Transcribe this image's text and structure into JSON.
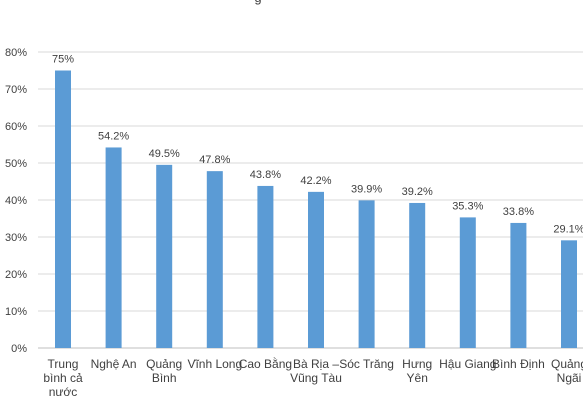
{
  "chart_data": {
    "type": "bar",
    "title_fragment": "g",
    "categories": [
      [
        "Trung",
        "bình cả",
        "nước"
      ],
      [
        "Nghệ An"
      ],
      [
        "Quảng",
        "Bình"
      ],
      [
        "Vĩnh Long"
      ],
      [
        "Cao Bằng"
      ],
      [
        "Bà Rịa –",
        "Vũng Tàu"
      ],
      [
        "Sóc Trăng"
      ],
      [
        "Hưng",
        "Yên"
      ],
      [
        "Hậu Giang"
      ],
      [
        "Bình Định"
      ],
      [
        "Quảng",
        "Ngãi"
      ]
    ],
    "values": [
      75,
      54.2,
      49.5,
      47.8,
      43.8,
      42.2,
      39.9,
      39.2,
      35.3,
      33.8,
      29.1
    ],
    "data_labels": [
      "75%",
      "54.2%",
      "49.5%",
      "47.8%",
      "43.8%",
      "42.2%",
      "39.9%",
      "39.2%",
      "35.3%",
      "33.8%",
      "29.1%"
    ],
    "ylim": [
      0,
      80
    ],
    "yticks": [
      "0%",
      "10%",
      "20%",
      "30%",
      "40%",
      "50%",
      "60%",
      "70%",
      "80%"
    ],
    "grid": true,
    "legend": "none",
    "bar_color": "#5b9bd5",
    "grid_color": "#d9d9d9",
    "text_color": "#404040"
  }
}
